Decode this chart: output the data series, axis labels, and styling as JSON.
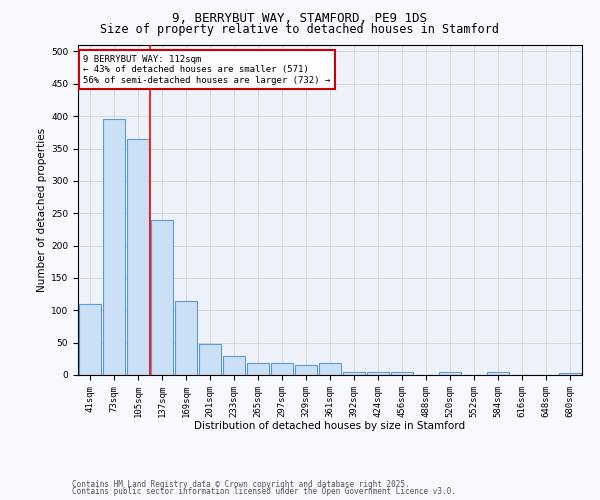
{
  "title": "9, BERRYBUT WAY, STAMFORD, PE9 1DS",
  "subtitle": "Size of property relative to detached houses in Stamford",
  "xlabel": "Distribution of detached houses by size in Stamford",
  "ylabel": "Number of detached properties",
  "categories": [
    "41sqm",
    "73sqm",
    "105sqm",
    "137sqm",
    "169sqm",
    "201sqm",
    "233sqm",
    "265sqm",
    "297sqm",
    "329sqm",
    "361sqm",
    "392sqm",
    "424sqm",
    "456sqm",
    "488sqm",
    "520sqm",
    "552sqm",
    "584sqm",
    "616sqm",
    "648sqm",
    "680sqm"
  ],
  "values": [
    110,
    395,
    365,
    240,
    115,
    48,
    30,
    18,
    18,
    15,
    18,
    5,
    5,
    5,
    0,
    5,
    0,
    5,
    0,
    0,
    3
  ],
  "bar_color": "#cce0f5",
  "bar_edge_color": "#5b9bd5",
  "bar_edge_width": 0.8,
  "red_line_index": 2,
  "annotation_text": "9 BERRYBUT WAY: 112sqm\n← 43% of detached houses are smaller (571)\n56% of semi-detached houses are larger (732) →",
  "annotation_box_color": "#ffffff",
  "annotation_box_edge_color": "#cc0000",
  "ylim": [
    0,
    510
  ],
  "yticks": [
    0,
    50,
    100,
    150,
    200,
    250,
    300,
    350,
    400,
    450,
    500
  ],
  "grid_color": "#cccccc",
  "bg_color": "#eef2fa",
  "fig_bg_color": "#f8f8ff",
  "footer_line1": "Contains HM Land Registry data © Crown copyright and database right 2025.",
  "footer_line2": "Contains public sector information licensed under the Open Government Licence v3.0.",
  "title_fontsize": 9,
  "subtitle_fontsize": 8.5,
  "xlabel_fontsize": 7.5,
  "ylabel_fontsize": 7.5,
  "tick_fontsize": 6.5,
  "annotation_fontsize": 6.5,
  "footer_fontsize": 5.5
}
